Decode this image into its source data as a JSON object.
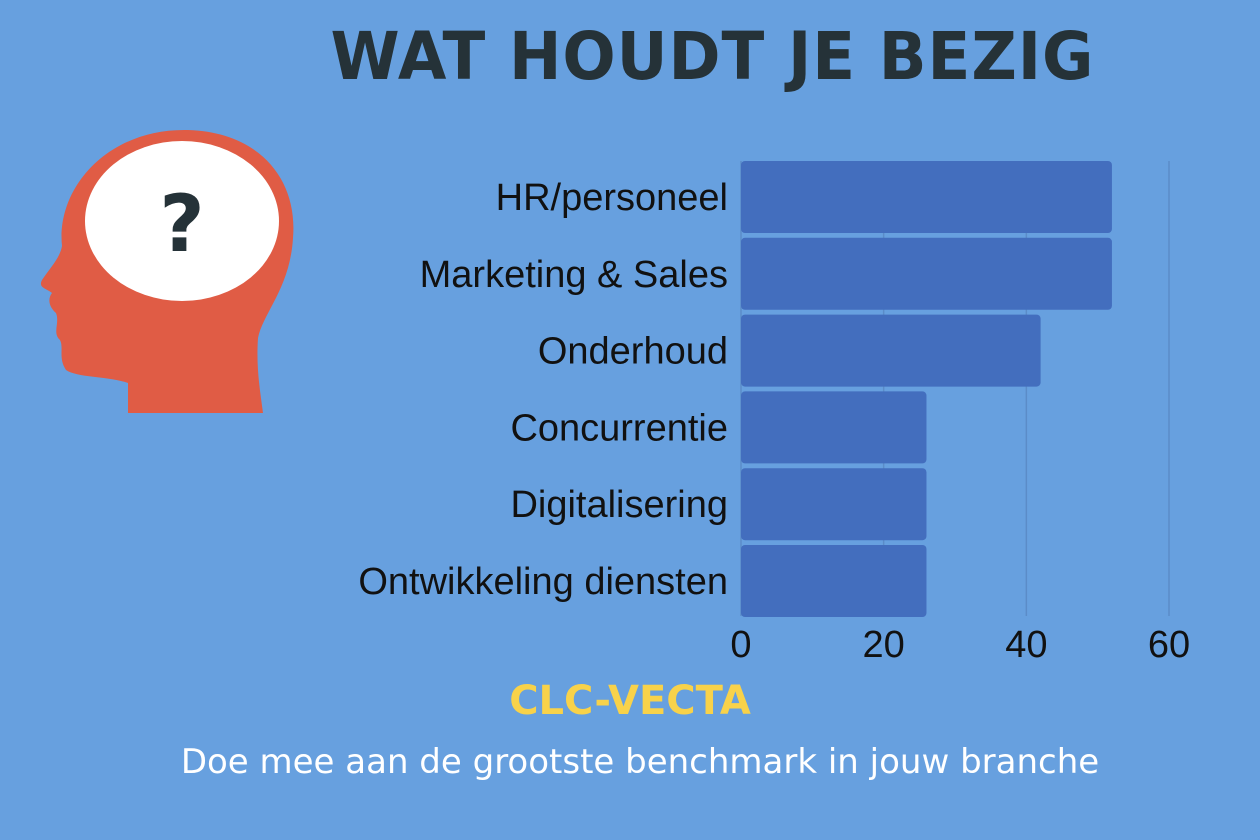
{
  "header": {
    "title": "WAT HOUDT JE BEZIG"
  },
  "icon": {
    "name": "head-question-icon",
    "symbol": "?",
    "head_color": "#e05c45",
    "bubble_color": "#ffffff"
  },
  "chart_data": {
    "type": "bar",
    "orientation": "horizontal",
    "categories": [
      "HR/personeel",
      "Marketing & Sales",
      "Onderhoud",
      "Concurrentie",
      "Digitalisering",
      "Ontwikkeling diensten"
    ],
    "values": [
      52,
      52,
      42,
      26,
      26,
      26
    ],
    "xlim": [
      0,
      60
    ],
    "xticks": [
      0,
      20,
      40,
      60
    ],
    "grid": true,
    "bar_color": "#436ebe",
    "background": "#67a0df"
  },
  "footer": {
    "brand": "CLC-VECTA",
    "brand_color": "#f8d24a",
    "tagline": "Doe mee aan de grootste benchmark in jouw branche"
  }
}
